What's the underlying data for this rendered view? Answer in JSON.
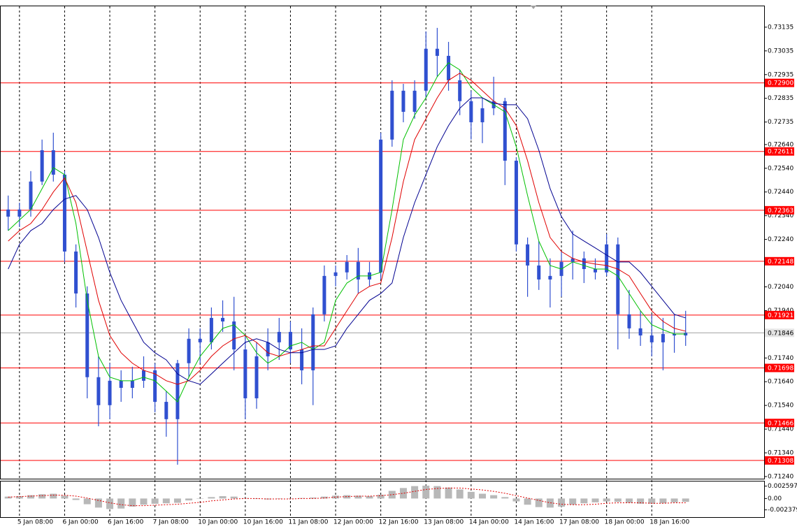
{
  "chart_data": [
    {
      "type": "candlestick",
      "categories": [
        null,
        "5 Jan 08:00",
        null,
        null,
        null,
        "6 Jan 00:00",
        null,
        null,
        null,
        "6 Jan 16:00",
        null,
        null,
        null,
        "7 Jan 08:00",
        null,
        null,
        null,
        "10 Jan 00:00",
        null,
        null,
        null,
        "10 Jan 16:00",
        null,
        null,
        null,
        "11 Jan 08:00",
        null,
        null,
        null,
        "12 Jan 00:00",
        null,
        null,
        null,
        "12 Jan 16:00",
        null,
        null,
        null,
        "13 Jan 08:00",
        null,
        null,
        null,
        "14 Jan 00:00",
        null,
        null,
        null,
        "14 Jan 16:00",
        null,
        null,
        null,
        "17 Jan 08:00",
        null,
        null,
        null,
        "18 Jan 00:00",
        null,
        null,
        null,
        "18 Jan 16:00",
        null,
        null,
        null
      ],
      "open": [
        0.72366,
        0.72336,
        0.72366,
        0.72484,
        0.72616,
        0.72513,
        0.72189,
        0.72012,
        0.71659,
        0.71541,
        0.71644,
        0.71614,
        0.71644,
        0.71688,
        0.71555,
        0.71482,
        0.71718,
        0.71821,
        0.71806,
        0.71909,
        0.71894,
        0.71776,
        0.7157,
        0.71747,
        0.71806,
        0.7185,
        0.71776,
        0.71688,
        0.71924,
        0.72086,
        0.72101,
        0.72145,
        0.72071,
        0.72101,
        0.72661,
        0.72867,
        0.72778,
        0.72867,
        0.73044,
        0.73014,
        0.72911,
        0.72823,
        0.72734,
        0.72793,
        0.72823,
        0.72572,
        0.72219,
        0.7213,
        0.72071,
        0.72086,
        0.72145,
        0.7216,
        0.72115,
        0.72101,
        0.72219,
        0.71924,
        0.71865,
        0.71835,
        0.71806,
        0.71841,
        0.71835
      ],
      "high": [
        0.72425,
        0.72395,
        0.72528,
        0.72661,
        0.7269,
        0.72528,
        0.72219,
        0.72042,
        0.71747,
        0.71718,
        0.71688,
        0.71703,
        0.71747,
        0.71718,
        0.716,
        0.71732,
        0.71865,
        0.71865,
        0.71953,
        0.71983,
        0.71998,
        0.71835,
        0.71806,
        0.71865,
        0.71909,
        0.71894,
        0.71865,
        0.71953,
        0.7213,
        0.7213,
        0.72174,
        0.72204,
        0.72145,
        0.7269,
        0.72911,
        0.72896,
        0.72911,
        0.73117,
        0.73132,
        0.73073,
        0.72955,
        0.72867,
        0.72837,
        0.72926,
        0.72837,
        0.72587,
        0.72248,
        0.72233,
        0.7216,
        0.72189,
        0.72277,
        0.72189,
        0.7216,
        0.72263,
        0.72248,
        0.72027,
        0.71939,
        0.71924,
        0.71909,
        0.71924,
        0.71939
      ],
      "low": [
        0.72277,
        0.72292,
        0.72336,
        0.72469,
        0.72484,
        0.72145,
        0.71953,
        0.7157,
        0.71452,
        0.71482,
        0.71555,
        0.7157,
        0.71614,
        0.71511,
        0.71408,
        0.7129,
        0.71659,
        0.71718,
        0.71776,
        0.7185,
        0.71688,
        0.71482,
        0.71526,
        0.71688,
        0.71732,
        0.71718,
        0.71629,
        0.71541,
        0.71894,
        0.72042,
        0.72071,
        0.72012,
        0.72042,
        0.72071,
        0.72631,
        0.72734,
        0.72749,
        0.72837,
        0.72926,
        0.72867,
        0.72764,
        0.72661,
        0.72646,
        0.72764,
        0.72469,
        0.72189,
        0.71998,
        0.72027,
        0.71953,
        0.71998,
        0.72071,
        0.72056,
        0.72071,
        0.72086,
        0.71776,
        0.71821,
        0.71791,
        0.71747,
        0.71688,
        0.71762,
        0.71791
      ],
      "close": [
        0.72336,
        0.72366,
        0.72484,
        0.72616,
        0.72513,
        0.72189,
        0.72012,
        0.71659,
        0.71541,
        0.71644,
        0.71614,
        0.71644,
        0.71688,
        0.71555,
        0.71482,
        0.71718,
        0.71821,
        0.71806,
        0.71909,
        0.71894,
        0.71776,
        0.7157,
        0.71747,
        0.71806,
        0.7185,
        0.71776,
        0.71688,
        0.71924,
        0.72086,
        0.72101,
        0.72145,
        0.72071,
        0.72101,
        0.72661,
        0.72867,
        0.72778,
        0.72867,
        0.73044,
        0.73014,
        0.72911,
        0.72823,
        0.72734,
        0.72793,
        0.72823,
        0.72572,
        0.72219,
        0.7213,
        0.72071,
        0.72086,
        0.72145,
        0.7216,
        0.72115,
        0.72101,
        0.72219,
        0.71924,
        0.71865,
        0.71835,
        0.71806,
        0.71841,
        0.71835,
        0.71846
      ],
      "color": "#3050d0",
      "moving_averages": [
        {
          "color": "#00c000",
          "values": [
            0.72277,
            0.72322,
            0.72366,
            0.72454,
            0.72543,
            0.72513,
            0.72307,
            0.71983,
            0.71747,
            0.71659,
            0.71644,
            0.71644,
            0.71659,
            0.71644,
            0.716,
            0.71555,
            0.71659,
            0.71747,
            0.71806,
            0.71865,
            0.7188,
            0.71835,
            0.71762,
            0.71718,
            0.71747,
            0.71791,
            0.71806,
            0.71776,
            0.71806,
            0.71983,
            0.72056,
            0.72086,
            0.72086,
            0.72101,
            0.72366,
            0.72661,
            0.72764,
            0.72837,
            0.72926,
            0.72985,
            0.72955,
            0.72882,
            0.72837,
            0.72808,
            0.72778,
            0.72631,
            0.72425,
            0.72233,
            0.7213,
            0.72115,
            0.72145,
            0.7213,
            0.72115,
            0.72115,
            0.72086,
            0.72012,
            0.71939,
            0.7188,
            0.71859,
            0.71841,
            0.71841
          ]
        },
        {
          "color": "#e00000",
          "values": [
            0.72233,
            0.72277,
            0.72307,
            0.72366,
            0.7244,
            0.72499,
            0.72395,
            0.72189,
            0.71983,
            0.71835,
            0.71762,
            0.71718,
            0.71688,
            0.71673,
            0.71644,
            0.71629,
            0.71644,
            0.71688,
            0.71747,
            0.71791,
            0.71821,
            0.71835,
            0.71806,
            0.71762,
            0.71747,
            0.71762,
            0.71776,
            0.71791,
            0.71791,
            0.71865,
            0.71939,
            0.72012,
            0.72042,
            0.72056,
            0.72248,
            0.72484,
            0.72661,
            0.72749,
            0.72837,
            0.72911,
            0.72941,
            0.72911,
            0.72867,
            0.72823,
            0.72793,
            0.7272,
            0.72572,
            0.72395,
            0.72248,
            0.72189,
            0.7216,
            0.72145,
            0.72136,
            0.7213,
            0.72115,
            0.72086,
            0.72012,
            0.71939,
            0.71894,
            0.71865,
            0.71853
          ]
        },
        {
          "color": "#000090",
          "values": [
            0.72115,
            0.72219,
            0.72277,
            0.72307,
            0.72366,
            0.7241,
            0.72425,
            0.72366,
            0.72248,
            0.72101,
            0.71983,
            0.71894,
            0.71806,
            0.71762,
            0.71732,
            0.71673,
            0.71644,
            0.71629,
            0.71673,
            0.71718,
            0.71762,
            0.71806,
            0.71821,
            0.71806,
            0.71776,
            0.71762,
            0.71762,
            0.71776,
            0.71776,
            0.71791,
            0.71865,
            0.71924,
            0.71983,
            0.72012,
            0.72056,
            0.72248,
            0.72395,
            0.72513,
            0.72631,
            0.7272,
            0.72793,
            0.72837,
            0.72837,
            0.72814,
            0.72808,
            0.72808,
            0.72749,
            0.72616,
            0.72454,
            0.72336,
            0.72263,
            0.72233,
            0.72204,
            0.72174,
            0.72145,
            0.72145,
            0.72101,
            0.72042,
            0.71983,
            0.71924,
            0.71909
          ]
        }
      ],
      "ylim": [
        0.71231,
        0.73226
      ],
      "yticks": [
        0.73135,
        0.73035,
        0.72935,
        0.72835,
        0.72735,
        {
          "value": 0.7264,
          "label": "0.72640"
        },
        {
          "value": 0.7254,
          "label": "0.72540"
        },
        {
          "value": 0.7244,
          "label": "0.72440"
        },
        {
          "value": 0.7234,
          "label": "0.72340"
        },
        {
          "value": 0.7224,
          "label": "0.72240"
        },
        {
          "value": 0.7204,
          "label": "0.72040"
        },
        {
          "value": 0.7194,
          "label": "0.71940"
        },
        {
          "value": 0.7174,
          "label": "0.71740"
        },
        {
          "value": 0.7164,
          "label": "0.71640"
        },
        {
          "value": 0.7154,
          "label": "0.71540"
        },
        {
          "value": 0.7144,
          "label": "0.71440"
        },
        {
          "value": 0.7134,
          "label": "0.71340"
        },
        {
          "value": 0.7124,
          "label": "0.71240"
        }
      ],
      "levels": [
        {
          "value": 0.729,
          "label": "0.72900"
        },
        {
          "value": 0.72611,
          "label": "0.72611"
        },
        {
          "value": 0.72363,
          "label": "0.72363"
        },
        {
          "value": 0.72148,
          "label": "0.72148"
        },
        {
          "value": 0.71921,
          "label": "0.71921"
        },
        {
          "value": 0.71698,
          "label": "0.71698"
        },
        {
          "value": 0.71466,
          "label": "0.71466"
        },
        {
          "value": 0.71308,
          "label": "0.71308"
        }
      ],
      "level_color": "#ff0000",
      "current_price": 0.71846,
      "grid": true
    },
    {
      "type": "bar",
      "values": [
        0.0004,
        0.0005,
        0.0007,
        0.0009,
        0.001,
        0.0006,
        -0.0003,
        -0.0012,
        -0.0019,
        -0.0022,
        -0.0021,
        -0.0017,
        -0.0013,
        -0.0011,
        -0.001,
        -0.0009,
        -0.0004,
        0.0,
        0.0003,
        0.0005,
        0.0004,
        0.0001,
        -0.0001,
        -0.0002,
        -0.0001,
        0.0,
        0.0001,
        0.0002,
        0.0004,
        0.0006,
        0.0007,
        0.0006,
        0.0005,
        0.0008,
        0.0016,
        0.0022,
        0.0026,
        0.0027,
        0.0026,
        0.0023,
        0.0019,
        0.0014,
        0.001,
        0.0007,
        0.0003,
        -0.0006,
        -0.0013,
        -0.0018,
        -0.0019,
        -0.0017,
        -0.0013,
        -0.001,
        -0.0008,
        -0.0006,
        -0.0007,
        -0.0009,
        -0.0011,
        -0.0011,
        -0.001,
        -0.0008,
        -0.0007
      ],
      "color": "#b8b8b8",
      "signal": {
        "color": "#e00000",
        "values": [
          0.0003,
          0.0004,
          0.0005,
          0.0006,
          0.0007,
          0.0007,
          0.0005,
          0.0001,
          -0.0004,
          -0.0009,
          -0.0013,
          -0.0015,
          -0.0015,
          -0.0014,
          -0.0013,
          -0.0012,
          -0.001,
          -0.0008,
          -0.0005,
          -0.0003,
          -0.0001,
          0.0,
          0.0,
          -0.0001,
          -0.0001,
          -0.0001,
          0.0,
          0.0,
          0.0001,
          0.0003,
          0.0004,
          0.0005,
          0.0005,
          0.0006,
          0.0008,
          0.0011,
          0.0015,
          0.0019,
          0.0021,
          0.0022,
          0.0022,
          0.002,
          0.0018,
          0.0015,
          0.0011,
          0.0006,
          0.0001,
          -0.0004,
          -0.0009,
          -0.0012,
          -0.0013,
          -0.0013,
          -0.0012,
          -0.001,
          -0.0009,
          -0.0009,
          -0.0009,
          -0.001,
          -0.001,
          -0.0009,
          -0.0009
        ]
      },
      "ylim": [
        -0.0039,
        0.00357
      ],
      "yticks": [
        0.002597,
        {
          "value": 0,
          "label": "0.00"
        },
        -0.002379
      ]
    }
  ]
}
